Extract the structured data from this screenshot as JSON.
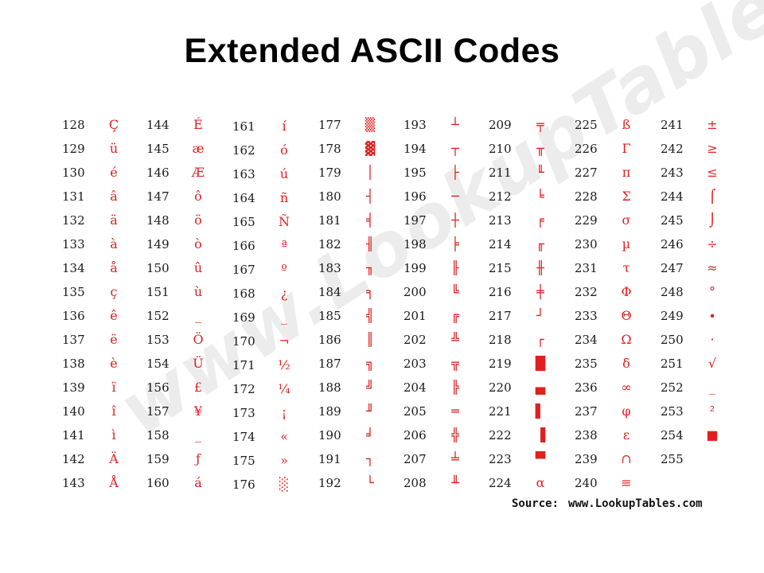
{
  "title": "Extended ASCII Codes",
  "watermark": "www.LookupTables.com",
  "source": {
    "label": "Source:",
    "url": "www.LookupTables.com"
  },
  "colors": {
    "number": "#1a1a1a",
    "character": "#e02020",
    "watermark": "#ececec"
  },
  "columns": [
    {
      "entries": [
        {
          "code": "128",
          "char": "Ç"
        },
        {
          "code": "129",
          "char": "ü"
        },
        {
          "code": "130",
          "char": "é"
        },
        {
          "code": "131",
          "char": "â"
        },
        {
          "code": "132",
          "char": "ä"
        },
        {
          "code": "133",
          "char": "à"
        },
        {
          "code": "134",
          "char": "å"
        },
        {
          "code": "135",
          "char": "ç"
        },
        {
          "code": "136",
          "char": "ê"
        },
        {
          "code": "137",
          "char": "ë"
        },
        {
          "code": "138",
          "char": "è"
        },
        {
          "code": "139",
          "char": "ï"
        },
        {
          "code": "140",
          "char": "î"
        },
        {
          "code": "141",
          "char": "ì"
        },
        {
          "code": "142",
          "char": "Ä"
        },
        {
          "code": "143",
          "char": "Å"
        }
      ]
    },
    {
      "entries": [
        {
          "code": "144",
          "char": "É"
        },
        {
          "code": "145",
          "char": "æ"
        },
        {
          "code": "146",
          "char": "Æ"
        },
        {
          "code": "147",
          "char": "ô"
        },
        {
          "code": "148",
          "char": "ö"
        },
        {
          "code": "149",
          "char": "ò"
        },
        {
          "code": "150",
          "char": "û"
        },
        {
          "code": "151",
          "char": "ù"
        },
        {
          "code": "152",
          "char": "_"
        },
        {
          "code": "153",
          "char": "Ö"
        },
        {
          "code": "154",
          "char": "Ü"
        },
        {
          "code": "156",
          "char": "£"
        },
        {
          "code": "157",
          "char": "¥"
        },
        {
          "code": "158",
          "char": "_"
        },
        {
          "code": "159",
          "char": "ƒ"
        },
        {
          "code": "160",
          "char": "á"
        }
      ]
    },
    {
      "entries": [
        {
          "code": "161",
          "char": "í"
        },
        {
          "code": "162",
          "char": "ó"
        },
        {
          "code": "163",
          "char": "ú"
        },
        {
          "code": "164",
          "char": "ñ"
        },
        {
          "code": "165",
          "char": "Ñ"
        },
        {
          "code": "166",
          "char": "ª"
        },
        {
          "code": "167",
          "char": "º"
        },
        {
          "code": "168",
          "char": "¿"
        },
        {
          "code": "169",
          "char": "_"
        },
        {
          "code": "170",
          "char": "¬"
        },
        {
          "code": "171",
          "char": "½"
        },
        {
          "code": "172",
          "char": "¼"
        },
        {
          "code": "173",
          "char": "¡"
        },
        {
          "code": "174",
          "char": "«"
        },
        {
          "code": "175",
          "char": "»"
        },
        {
          "code": "176",
          "char": "░"
        }
      ]
    },
    {
      "entries": [
        {
          "code": "177",
          "char": "▒"
        },
        {
          "code": "178",
          "char": "▓"
        },
        {
          "code": "179",
          "char": "│"
        },
        {
          "code": "180",
          "char": "┤"
        },
        {
          "code": "181",
          "char": "╡"
        },
        {
          "code": "182",
          "char": "╢"
        },
        {
          "code": "183",
          "char": "╖"
        },
        {
          "code": "184",
          "char": "╕"
        },
        {
          "code": "185",
          "char": "╣"
        },
        {
          "code": "186",
          "char": "║"
        },
        {
          "code": "187",
          "char": "╗"
        },
        {
          "code": "188",
          "char": "╝"
        },
        {
          "code": "189",
          "char": "╜"
        },
        {
          "code": "190",
          "char": "╛"
        },
        {
          "code": "191",
          "char": "┐"
        },
        {
          "code": "192",
          "char": "└"
        }
      ]
    },
    {
      "entries": [
        {
          "code": "193",
          "char": "┴"
        },
        {
          "code": "194",
          "char": "┬"
        },
        {
          "code": "195",
          "char": "├"
        },
        {
          "code": "196",
          "char": "─"
        },
        {
          "code": "197",
          "char": "┼"
        },
        {
          "code": "198",
          "char": "╞"
        },
        {
          "code": "199",
          "char": "╟"
        },
        {
          "code": "200",
          "char": "╚"
        },
        {
          "code": "201",
          "char": "╔"
        },
        {
          "code": "202",
          "char": "╩"
        },
        {
          "code": "203",
          "char": "╦"
        },
        {
          "code": "204",
          "char": "╠"
        },
        {
          "code": "205",
          "char": "═"
        },
        {
          "code": "206",
          "char": "╬"
        },
        {
          "code": "207",
          "char": "╧"
        },
        {
          "code": "208",
          "char": "╨"
        }
      ]
    },
    {
      "entries": [
        {
          "code": "209",
          "char": "╤"
        },
        {
          "code": "210",
          "char": "╥"
        },
        {
          "code": "211",
          "char": "╙"
        },
        {
          "code": "212",
          "char": "╘"
        },
        {
          "code": "213",
          "char": "╒"
        },
        {
          "code": "214",
          "char": "╓"
        },
        {
          "code": "215",
          "char": "╫"
        },
        {
          "code": "216",
          "char": "╪"
        },
        {
          "code": "217",
          "char": "┘"
        },
        {
          "code": "218",
          "char": "┌"
        },
        {
          "code": "219",
          "char": "█"
        },
        {
          "code": "220",
          "char": "▄"
        },
        {
          "code": "221",
          "char": "▌"
        },
        {
          "code": "222",
          "char": "▐"
        },
        {
          "code": "223",
          "char": "▀"
        },
        {
          "code": "224",
          "char": "α"
        }
      ]
    },
    {
      "entries": [
        {
          "code": "225",
          "char": "ß"
        },
        {
          "code": "226",
          "char": "Γ"
        },
        {
          "code": "227",
          "char": "π"
        },
        {
          "code": "228",
          "char": "Σ"
        },
        {
          "code": "229",
          "char": "σ"
        },
        {
          "code": "230",
          "char": "µ"
        },
        {
          "code": "231",
          "char": "τ"
        },
        {
          "code": "232",
          "char": "Φ"
        },
        {
          "code": "233",
          "char": "Θ"
        },
        {
          "code": "234",
          "char": "Ω"
        },
        {
          "code": "235",
          "char": "δ"
        },
        {
          "code": "236",
          "char": "∞"
        },
        {
          "code": "237",
          "char": "φ"
        },
        {
          "code": "238",
          "char": "ε"
        },
        {
          "code": "239",
          "char": "∩"
        },
        {
          "code": "240",
          "char": "≡"
        }
      ]
    },
    {
      "entries": [
        {
          "code": "241",
          "char": "±"
        },
        {
          "code": "242",
          "char": "≥"
        },
        {
          "code": "243",
          "char": "≤"
        },
        {
          "code": "244",
          "char": "⌠"
        },
        {
          "code": "245",
          "char": "⌡"
        },
        {
          "code": "246",
          "char": "÷"
        },
        {
          "code": "247",
          "char": "≈"
        },
        {
          "code": "248",
          "char": "°"
        },
        {
          "code": "249",
          "char": "∙"
        },
        {
          "code": "250",
          "char": "·"
        },
        {
          "code": "251",
          "char": "√"
        },
        {
          "code": "252",
          "char": "_"
        },
        {
          "code": "253",
          "char": "²"
        },
        {
          "code": "254",
          "char": "■"
        },
        {
          "code": "255",
          "char": ""
        }
      ]
    }
  ]
}
